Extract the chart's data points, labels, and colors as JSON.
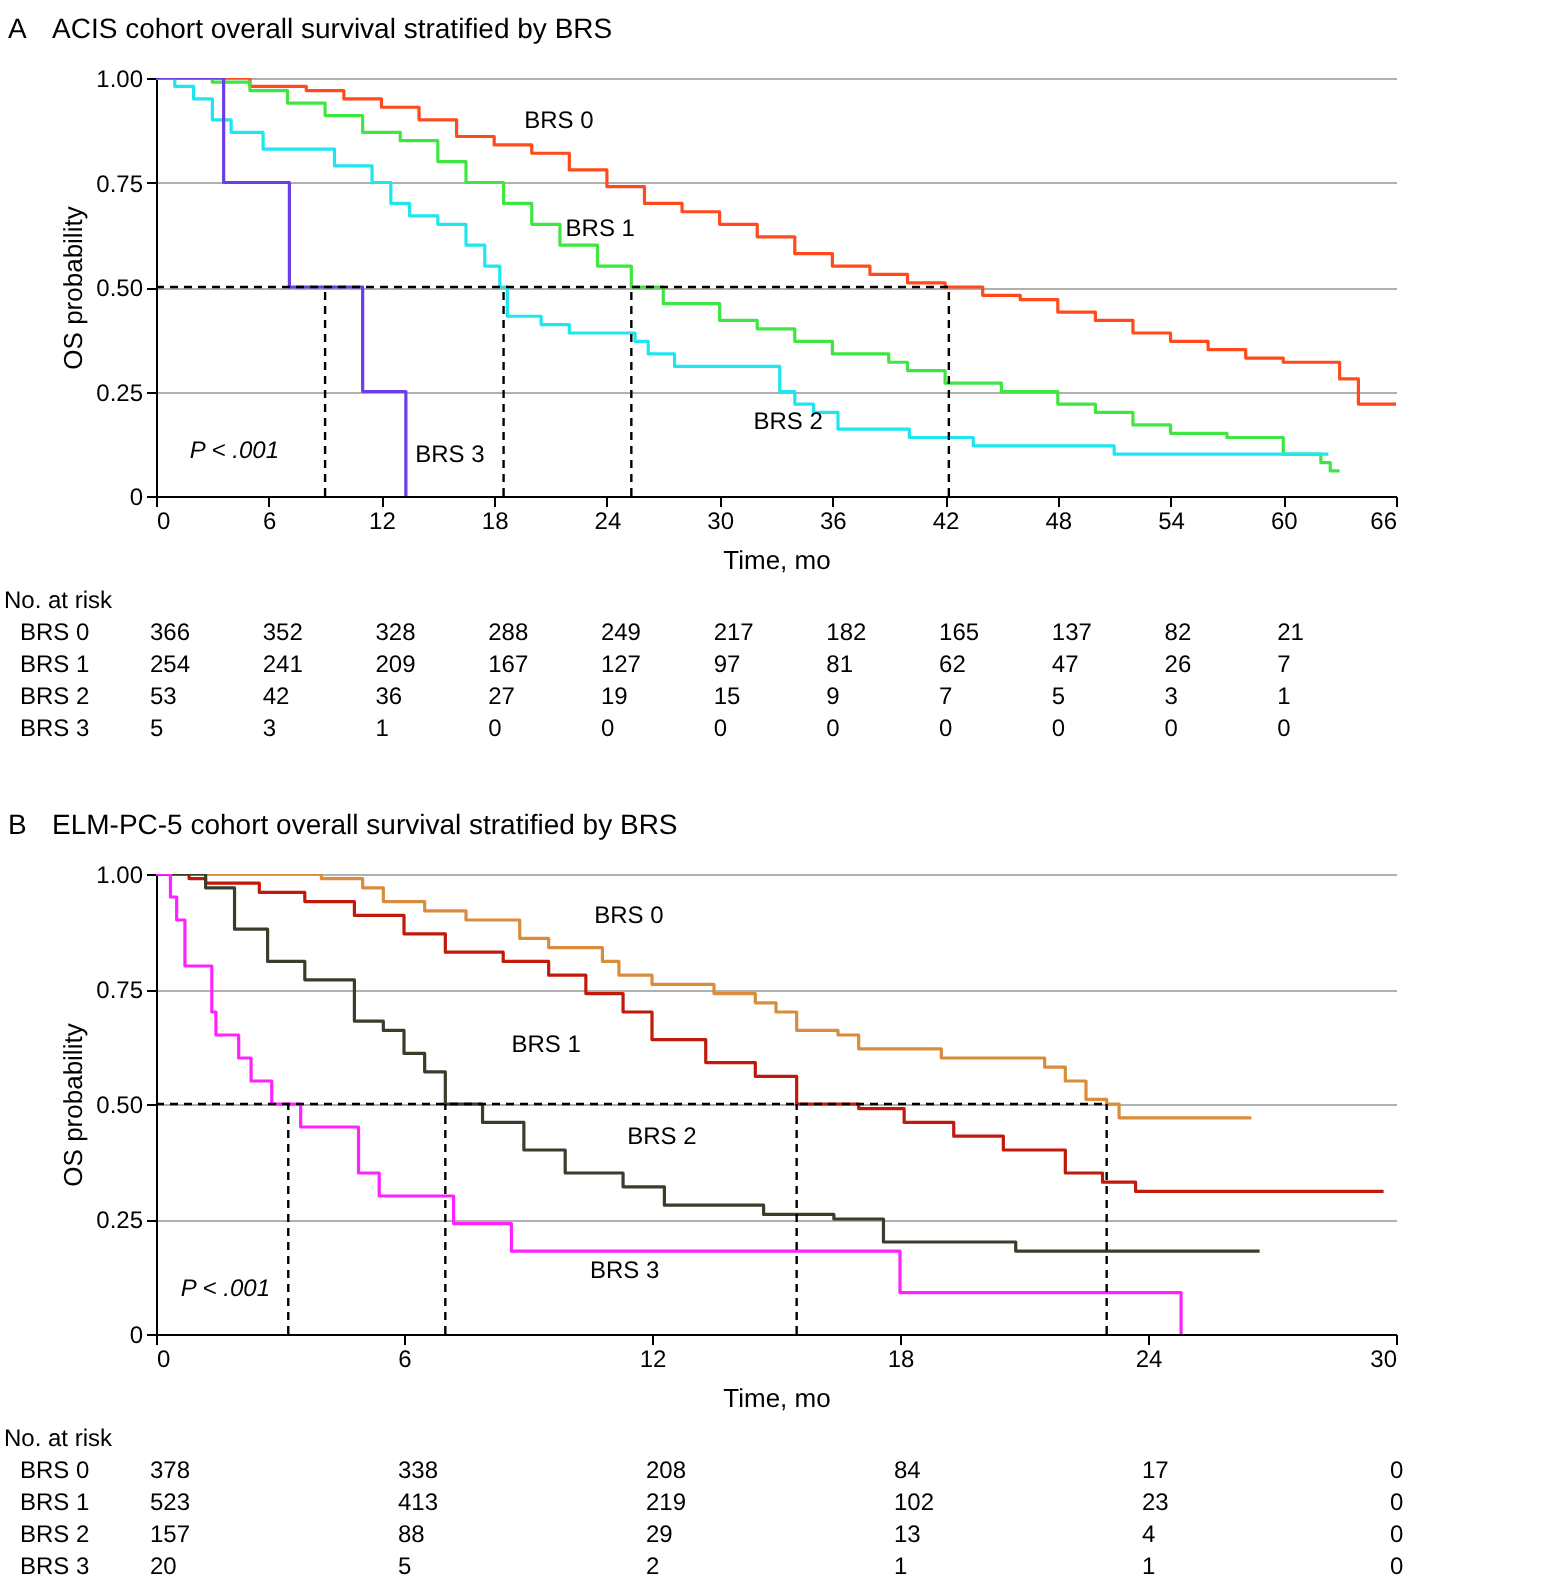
{
  "chart_data": [
    {
      "type": "step",
      "title": "ACIS cohort overall survival stratified by BRS",
      "xlabel": "Time, mo",
      "ylabel": "OS probability",
      "xlim": [
        0,
        66
      ],
      "xticks": [
        0,
        6,
        12,
        18,
        24,
        30,
        36,
        42,
        48,
        54,
        60,
        66
      ],
      "ylim": [
        0,
        1
      ],
      "yticks": [
        0,
        {
          "value": 0.25,
          "label": "0.25"
        },
        {
          "value": 0.5,
          "label": "0.50"
        },
        {
          "value": 0.75,
          "label": "0.75"
        },
        {
          "value": 1,
          "label": "1.00"
        }
      ],
      "grid": "y",
      "legend": false,
      "ref_lines": [
        {
          "axis": "y",
          "value": 0.5,
          "line_style": "dashed"
        },
        {
          "axis": "x",
          "value": 9,
          "line_style": "dashed"
        },
        {
          "axis": "x",
          "value": 18.5,
          "line_style": "dashed"
        },
        {
          "axis": "x",
          "value": 25.3,
          "line_style": "dashed"
        },
        {
          "axis": "x",
          "value": 42.2,
          "line_style": "dashed"
        }
      ],
      "series": [
        {
          "name": "BRS 0",
          "color": "#ff4a1c",
          "x": [
            0,
            3,
            5,
            8,
            10,
            12,
            14,
            16,
            18,
            20,
            22,
            24,
            26,
            28,
            30,
            32,
            34,
            36,
            38,
            40,
            42,
            44,
            46,
            48,
            50,
            52,
            54,
            56,
            58,
            60,
            62.5,
            63,
            64,
            66
          ],
          "values": [
            1,
            1,
            0.98,
            0.97,
            0.95,
            0.93,
            0.9,
            0.86,
            0.84,
            0.82,
            0.78,
            0.74,
            0.7,
            0.68,
            0.65,
            0.62,
            0.58,
            0.55,
            0.53,
            0.51,
            0.5,
            0.48,
            0.47,
            0.44,
            0.42,
            0.39,
            0.37,
            0.35,
            0.33,
            0.32,
            0.32,
            0.28,
            0.22,
            0.22
          ]
        },
        {
          "name": "BRS 1",
          "color": "#40e640",
          "x": [
            0,
            3,
            5,
            7,
            9,
            11,
            13,
            15,
            16.5,
            18.5,
            20,
            21.5,
            23.5,
            25.3,
            27,
            30,
            32,
            34,
            36,
            39,
            40,
            42,
            45,
            48,
            50,
            52,
            54,
            57,
            60,
            62,
            62.5,
            63
          ],
          "values": [
            1,
            0.99,
            0.97,
            0.94,
            0.91,
            0.87,
            0.85,
            0.8,
            0.75,
            0.7,
            0.65,
            0.6,
            0.55,
            0.5,
            0.46,
            0.42,
            0.4,
            0.37,
            0.34,
            0.32,
            0.3,
            0.27,
            0.25,
            0.22,
            0.2,
            0.17,
            0.15,
            0.14,
            0.1,
            0.08,
            0.06,
            0.06
          ]
        },
        {
          "name": "BRS 2",
          "color": "#1ee6f0",
          "x": [
            0,
            1,
            2,
            3,
            4,
            5.7,
            9.5,
            11.5,
            12.5,
            13.5,
            15,
            16.5,
            17.5,
            18.3,
            18.7,
            20.5,
            22,
            25.5,
            26.2,
            27.6,
            33.2,
            34,
            35,
            36.3,
            40.1,
            43.5,
            51,
            62.4
          ],
          "values": [
            1,
            0.98,
            0.95,
            0.9,
            0.87,
            0.83,
            0.79,
            0.75,
            0.7,
            0.67,
            0.65,
            0.6,
            0.55,
            0.5,
            0.43,
            0.41,
            0.39,
            0.37,
            0.34,
            0.31,
            0.25,
            0.22,
            0.2,
            0.16,
            0.14,
            0.12,
            0.1,
            0.1
          ]
        },
        {
          "name": "BRS 3",
          "color": "#6b3fe6",
          "x": [
            0,
            3.6,
            7.1,
            11,
            13.3
          ],
          "values": [
            1,
            0.75,
            0.5,
            0.25,
            0
          ]
        }
      ],
      "annotations": [
        "A",
        "P < .001",
        "No. at risk",
        "BRS 0",
        "366",
        "352",
        "328",
        "288",
        "249",
        "217",
        "182",
        "165",
        "137",
        "82",
        "21",
        "BRS 1",
        "254",
        "241",
        "209",
        "167",
        "127",
        "97",
        "81",
        "62",
        "47",
        "26",
        "7",
        "BRS 2",
        "53",
        "42",
        "36",
        "27",
        "19",
        "15",
        "9",
        "7",
        "5",
        "3",
        "1",
        "BRS 3",
        "5",
        "3",
        "1",
        "0",
        "0",
        "0",
        "0",
        "0",
        "0",
        "0",
        "0"
      ]
    },
    {
      "type": "step",
      "title": "ELM-PC-5 cohort overall survival stratified by BRS",
      "xlabel": "Time, mo",
      "ylabel": "OS probability",
      "xlim": [
        0,
        30
      ],
      "xticks": [
        0,
        6,
        12,
        18,
        24,
        30
      ],
      "ylim": [
        0,
        1
      ],
      "yticks": [
        0,
        {
          "value": 0.25,
          "label": "0.25"
        },
        {
          "value": 0.5,
          "label": "0.50"
        },
        {
          "value": 0.75,
          "label": "0.75"
        },
        {
          "value": 1,
          "label": "1.00"
        }
      ],
      "grid": "y",
      "legend": false,
      "ref_lines": [
        {
          "axis": "y",
          "value": 0.5,
          "line_style": "dashed"
        },
        {
          "axis": "x",
          "value": 3.2,
          "line_style": "dashed"
        },
        {
          "axis": "x",
          "value": 7,
          "line_style": "dashed"
        },
        {
          "axis": "x",
          "value": 15.5,
          "line_style": "dashed"
        },
        {
          "axis": "x",
          "value": 23,
          "line_style": "dashed"
        }
      ],
      "series": [
        {
          "name": "BRS 0",
          "color": "#d98c3c",
          "x": [
            0,
            2.5,
            4,
            5,
            5.5,
            6.5,
            7.5,
            8.8,
            9.5,
            10.8,
            11.2,
            12,
            13.5,
            14.5,
            15,
            15.5,
            16.5,
            17,
            19,
            21.5,
            22,
            22.5,
            23,
            23.3,
            26.5
          ],
          "values": [
            1,
            1,
            0.99,
            0.97,
            0.94,
            0.92,
            0.9,
            0.86,
            0.84,
            0.81,
            0.78,
            0.76,
            0.74,
            0.72,
            0.7,
            0.66,
            0.65,
            0.62,
            0.6,
            0.58,
            0.55,
            0.51,
            0.5,
            0.47,
            0.47
          ]
        },
        {
          "name": "BRS 1",
          "color": "#c01a0a",
          "x": [
            0,
            0.8,
            1.2,
            2.5,
            3.6,
            4.8,
            6,
            7,
            8.4,
            9.5,
            10.4,
            11.3,
            12,
            13.3,
            14.5,
            15.5,
            17,
            18.1,
            19.3,
            20.5,
            22,
            22.9,
            23.7,
            29.7
          ],
          "values": [
            1,
            0.99,
            0.98,
            0.96,
            0.94,
            0.91,
            0.87,
            0.83,
            0.81,
            0.78,
            0.74,
            0.7,
            0.64,
            0.59,
            0.56,
            0.5,
            0.49,
            0.46,
            0.43,
            0.4,
            0.35,
            0.33,
            0.31,
            0.31
          ]
        },
        {
          "name": "BRS 2",
          "color": "#3a3d2a",
          "x": [
            0,
            0.5,
            1.2,
            1.9,
            2.7,
            3.6,
            4.8,
            5.5,
            6,
            6.5,
            7,
            7.9,
            8.9,
            9.9,
            11.3,
            12.3,
            14.7,
            16.4,
            17.6,
            20.8,
            26.7
          ],
          "values": [
            1,
            1,
            0.97,
            0.88,
            0.81,
            0.77,
            0.68,
            0.66,
            0.61,
            0.57,
            0.5,
            0.46,
            0.4,
            0.35,
            0.32,
            0.28,
            0.26,
            0.25,
            0.2,
            0.18,
            0.18
          ]
        },
        {
          "name": "BRS 3",
          "color": "#ff22ff",
          "x": [
            0,
            0.35,
            0.5,
            0.7,
            1.35,
            1.45,
            2,
            2.3,
            2.8,
            3.5,
            4.9,
            5.4,
            7.2,
            8.6,
            18,
            24.8
          ],
          "values": [
            1,
            0.95,
            0.9,
            0.8,
            0.7,
            0.65,
            0.6,
            0.55,
            0.5,
            0.45,
            0.35,
            0.3,
            0.24,
            0.18,
            0.09,
            0
          ]
        }
      ],
      "annotations": [
        "B",
        "P < .001",
        "No. at risk",
        "BRS 0",
        "378",
        "338",
        "208",
        "84",
        "17",
        "0",
        "BRS 1",
        "523",
        "413",
        "219",
        "102",
        "23",
        "0",
        "BRS 2",
        "157",
        "88",
        "29",
        "13",
        "4",
        "0",
        "BRS 3",
        "20",
        "5",
        "2",
        "1",
        "1",
        "0"
      ]
    }
  ]
}
